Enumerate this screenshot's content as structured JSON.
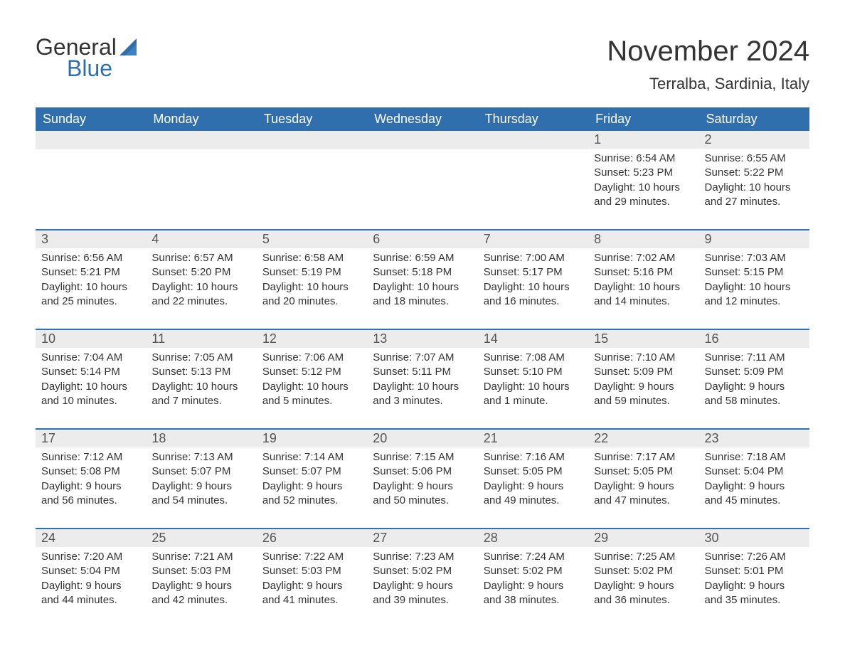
{
  "logo": {
    "text1": "General",
    "text2": "Blue",
    "shape_color": "#2f6fad"
  },
  "title": "November 2024",
  "location": "Terralba, Sardinia, Italy",
  "colors": {
    "header_bg": "#2f6fad",
    "header_text": "#ffffff",
    "daynum_bg": "#ececec",
    "daynum_text": "#555555",
    "body_text": "#333333",
    "rule": "#2f6fad",
    "page_bg": "#ffffff"
  },
  "typography": {
    "month_title_fontsize": 40,
    "location_fontsize": 22,
    "weekday_fontsize": 18,
    "daynum_fontsize": 18,
    "body_fontsize": 15
  },
  "weekdays": [
    "Sunday",
    "Monday",
    "Tuesday",
    "Wednesday",
    "Thursday",
    "Friday",
    "Saturday"
  ],
  "weeks": [
    [
      {
        "blank": true
      },
      {
        "blank": true
      },
      {
        "blank": true
      },
      {
        "blank": true
      },
      {
        "blank": true
      },
      {
        "n": "1",
        "sunrise": "Sunrise: 6:54 AM",
        "sunset": "Sunset: 5:23 PM",
        "d1": "Daylight: 10 hours",
        "d2": "and 29 minutes."
      },
      {
        "n": "2",
        "sunrise": "Sunrise: 6:55 AM",
        "sunset": "Sunset: 5:22 PM",
        "d1": "Daylight: 10 hours",
        "d2": "and 27 minutes."
      }
    ],
    [
      {
        "n": "3",
        "sunrise": "Sunrise: 6:56 AM",
        "sunset": "Sunset: 5:21 PM",
        "d1": "Daylight: 10 hours",
        "d2": "and 25 minutes."
      },
      {
        "n": "4",
        "sunrise": "Sunrise: 6:57 AM",
        "sunset": "Sunset: 5:20 PM",
        "d1": "Daylight: 10 hours",
        "d2": "and 22 minutes."
      },
      {
        "n": "5",
        "sunrise": "Sunrise: 6:58 AM",
        "sunset": "Sunset: 5:19 PM",
        "d1": "Daylight: 10 hours",
        "d2": "and 20 minutes."
      },
      {
        "n": "6",
        "sunrise": "Sunrise: 6:59 AM",
        "sunset": "Sunset: 5:18 PM",
        "d1": "Daylight: 10 hours",
        "d2": "and 18 minutes."
      },
      {
        "n": "7",
        "sunrise": "Sunrise: 7:00 AM",
        "sunset": "Sunset: 5:17 PM",
        "d1": "Daylight: 10 hours",
        "d2": "and 16 minutes."
      },
      {
        "n": "8",
        "sunrise": "Sunrise: 7:02 AM",
        "sunset": "Sunset: 5:16 PM",
        "d1": "Daylight: 10 hours",
        "d2": "and 14 minutes."
      },
      {
        "n": "9",
        "sunrise": "Sunrise: 7:03 AM",
        "sunset": "Sunset: 5:15 PM",
        "d1": "Daylight: 10 hours",
        "d2": "and 12 minutes."
      }
    ],
    [
      {
        "n": "10",
        "sunrise": "Sunrise: 7:04 AM",
        "sunset": "Sunset: 5:14 PM",
        "d1": "Daylight: 10 hours",
        "d2": "and 10 minutes."
      },
      {
        "n": "11",
        "sunrise": "Sunrise: 7:05 AM",
        "sunset": "Sunset: 5:13 PM",
        "d1": "Daylight: 10 hours",
        "d2": "and 7 minutes."
      },
      {
        "n": "12",
        "sunrise": "Sunrise: 7:06 AM",
        "sunset": "Sunset: 5:12 PM",
        "d1": "Daylight: 10 hours",
        "d2": "and 5 minutes."
      },
      {
        "n": "13",
        "sunrise": "Sunrise: 7:07 AM",
        "sunset": "Sunset: 5:11 PM",
        "d1": "Daylight: 10 hours",
        "d2": "and 3 minutes."
      },
      {
        "n": "14",
        "sunrise": "Sunrise: 7:08 AM",
        "sunset": "Sunset: 5:10 PM",
        "d1": "Daylight: 10 hours",
        "d2": "and 1 minute."
      },
      {
        "n": "15",
        "sunrise": "Sunrise: 7:10 AM",
        "sunset": "Sunset: 5:09 PM",
        "d1": "Daylight: 9 hours",
        "d2": "and 59 minutes."
      },
      {
        "n": "16",
        "sunrise": "Sunrise: 7:11 AM",
        "sunset": "Sunset: 5:09 PM",
        "d1": "Daylight: 9 hours",
        "d2": "and 58 minutes."
      }
    ],
    [
      {
        "n": "17",
        "sunrise": "Sunrise: 7:12 AM",
        "sunset": "Sunset: 5:08 PM",
        "d1": "Daylight: 9 hours",
        "d2": "and 56 minutes."
      },
      {
        "n": "18",
        "sunrise": "Sunrise: 7:13 AM",
        "sunset": "Sunset: 5:07 PM",
        "d1": "Daylight: 9 hours",
        "d2": "and 54 minutes."
      },
      {
        "n": "19",
        "sunrise": "Sunrise: 7:14 AM",
        "sunset": "Sunset: 5:07 PM",
        "d1": "Daylight: 9 hours",
        "d2": "and 52 minutes."
      },
      {
        "n": "20",
        "sunrise": "Sunrise: 7:15 AM",
        "sunset": "Sunset: 5:06 PM",
        "d1": "Daylight: 9 hours",
        "d2": "and 50 minutes."
      },
      {
        "n": "21",
        "sunrise": "Sunrise: 7:16 AM",
        "sunset": "Sunset: 5:05 PM",
        "d1": "Daylight: 9 hours",
        "d2": "and 49 minutes."
      },
      {
        "n": "22",
        "sunrise": "Sunrise: 7:17 AM",
        "sunset": "Sunset: 5:05 PM",
        "d1": "Daylight: 9 hours",
        "d2": "and 47 minutes."
      },
      {
        "n": "23",
        "sunrise": "Sunrise: 7:18 AM",
        "sunset": "Sunset: 5:04 PM",
        "d1": "Daylight: 9 hours",
        "d2": "and 45 minutes."
      }
    ],
    [
      {
        "n": "24",
        "sunrise": "Sunrise: 7:20 AM",
        "sunset": "Sunset: 5:04 PM",
        "d1": "Daylight: 9 hours",
        "d2": "and 44 minutes."
      },
      {
        "n": "25",
        "sunrise": "Sunrise: 7:21 AM",
        "sunset": "Sunset: 5:03 PM",
        "d1": "Daylight: 9 hours",
        "d2": "and 42 minutes."
      },
      {
        "n": "26",
        "sunrise": "Sunrise: 7:22 AM",
        "sunset": "Sunset: 5:03 PM",
        "d1": "Daylight: 9 hours",
        "d2": "and 41 minutes."
      },
      {
        "n": "27",
        "sunrise": "Sunrise: 7:23 AM",
        "sunset": "Sunset: 5:02 PM",
        "d1": "Daylight: 9 hours",
        "d2": "and 39 minutes."
      },
      {
        "n": "28",
        "sunrise": "Sunrise: 7:24 AM",
        "sunset": "Sunset: 5:02 PM",
        "d1": "Daylight: 9 hours",
        "d2": "and 38 minutes."
      },
      {
        "n": "29",
        "sunrise": "Sunrise: 7:25 AM",
        "sunset": "Sunset: 5:02 PM",
        "d1": "Daylight: 9 hours",
        "d2": "and 36 minutes."
      },
      {
        "n": "30",
        "sunrise": "Sunrise: 7:26 AM",
        "sunset": "Sunset: 5:01 PM",
        "d1": "Daylight: 9 hours",
        "d2": "and 35 minutes."
      }
    ]
  ]
}
